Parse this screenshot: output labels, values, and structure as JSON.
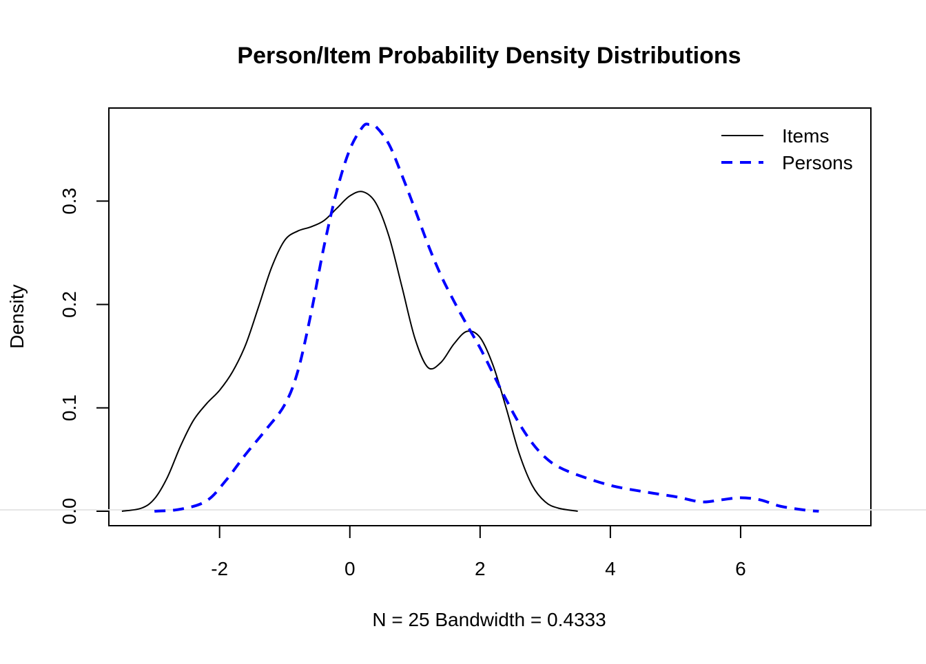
{
  "chart_data": {
    "type": "line",
    "title": "Person/Item Probability Density Distributions",
    "xlabel": "N = 25   Bandwidth = 0.4333",
    "ylabel": "Density",
    "xlim": [
      -3.7,
      8.0
    ],
    "ylim": [
      -0.014,
      0.39
    ],
    "x_ticks": [
      -2,
      0,
      2,
      4,
      6
    ],
    "x_tick_labels": [
      "-2",
      "0",
      "2",
      "4",
      "6"
    ],
    "y_ticks": [
      0.0,
      0.1,
      0.2,
      0.3
    ],
    "y_tick_labels": [
      "0.0",
      "0.1",
      "0.2",
      "0.3"
    ],
    "grid": false,
    "legend_position": "top-right",
    "series": [
      {
        "name": "Items",
        "color": "#000000",
        "line_style": "solid",
        "points": [
          [
            -3.5,
            0.0
          ],
          [
            -3.2,
            0.003
          ],
          [
            -3.0,
            0.012
          ],
          [
            -2.8,
            0.033
          ],
          [
            -2.6,
            0.063
          ],
          [
            -2.4,
            0.088
          ],
          [
            -2.2,
            0.104
          ],
          [
            -2.0,
            0.117
          ],
          [
            -1.8,
            0.135
          ],
          [
            -1.6,
            0.161
          ],
          [
            -1.4,
            0.198
          ],
          [
            -1.2,
            0.236
          ],
          [
            -1.0,
            0.262
          ],
          [
            -0.8,
            0.271
          ],
          [
            -0.6,
            0.275
          ],
          [
            -0.4,
            0.281
          ],
          [
            -0.2,
            0.293
          ],
          [
            0.0,
            0.305
          ],
          [
            0.2,
            0.309
          ],
          [
            0.4,
            0.298
          ],
          [
            0.6,
            0.266
          ],
          [
            0.8,
            0.217
          ],
          [
            1.0,
            0.167
          ],
          [
            1.2,
            0.139
          ],
          [
            1.4,
            0.144
          ],
          [
            1.6,
            0.162
          ],
          [
            1.8,
            0.174
          ],
          [
            2.0,
            0.168
          ],
          [
            2.2,
            0.141
          ],
          [
            2.4,
            0.1
          ],
          [
            2.6,
            0.056
          ],
          [
            2.8,
            0.025
          ],
          [
            3.0,
            0.009
          ],
          [
            3.2,
            0.003
          ],
          [
            3.5,
            0.0
          ]
        ]
      },
      {
        "name": "Persons",
        "color": "#0000ff",
        "line_style": "dashed",
        "points": [
          [
            -3.0,
            0.0
          ],
          [
            -2.6,
            0.002
          ],
          [
            -2.2,
            0.01
          ],
          [
            -1.9,
            0.03
          ],
          [
            -1.6,
            0.055
          ],
          [
            -1.3,
            0.078
          ],
          [
            -1.0,
            0.103
          ],
          [
            -0.8,
            0.135
          ],
          [
            -0.6,
            0.19
          ],
          [
            -0.4,
            0.255
          ],
          [
            -0.2,
            0.31
          ],
          [
            0.0,
            0.35
          ],
          [
            0.2,
            0.372
          ],
          [
            0.3,
            0.374
          ],
          [
            0.4,
            0.372
          ],
          [
            0.6,
            0.355
          ],
          [
            0.8,
            0.325
          ],
          [
            1.0,
            0.292
          ],
          [
            1.2,
            0.258
          ],
          [
            1.4,
            0.228
          ],
          [
            1.6,
            0.203
          ],
          [
            1.8,
            0.18
          ],
          [
            2.0,
            0.158
          ],
          [
            2.2,
            0.133
          ],
          [
            2.4,
            0.108
          ],
          [
            2.6,
            0.085
          ],
          [
            2.8,
            0.066
          ],
          [
            3.0,
            0.052
          ],
          [
            3.2,
            0.043
          ],
          [
            3.5,
            0.035
          ],
          [
            4.0,
            0.025
          ],
          [
            4.5,
            0.019
          ],
          [
            5.0,
            0.014
          ],
          [
            5.4,
            0.009
          ],
          [
            5.7,
            0.011
          ],
          [
            6.0,
            0.013
          ],
          [
            6.3,
            0.011
          ],
          [
            6.6,
            0.005
          ],
          [
            7.0,
            0.001
          ],
          [
            7.2,
            0.0
          ]
        ]
      }
    ]
  }
}
